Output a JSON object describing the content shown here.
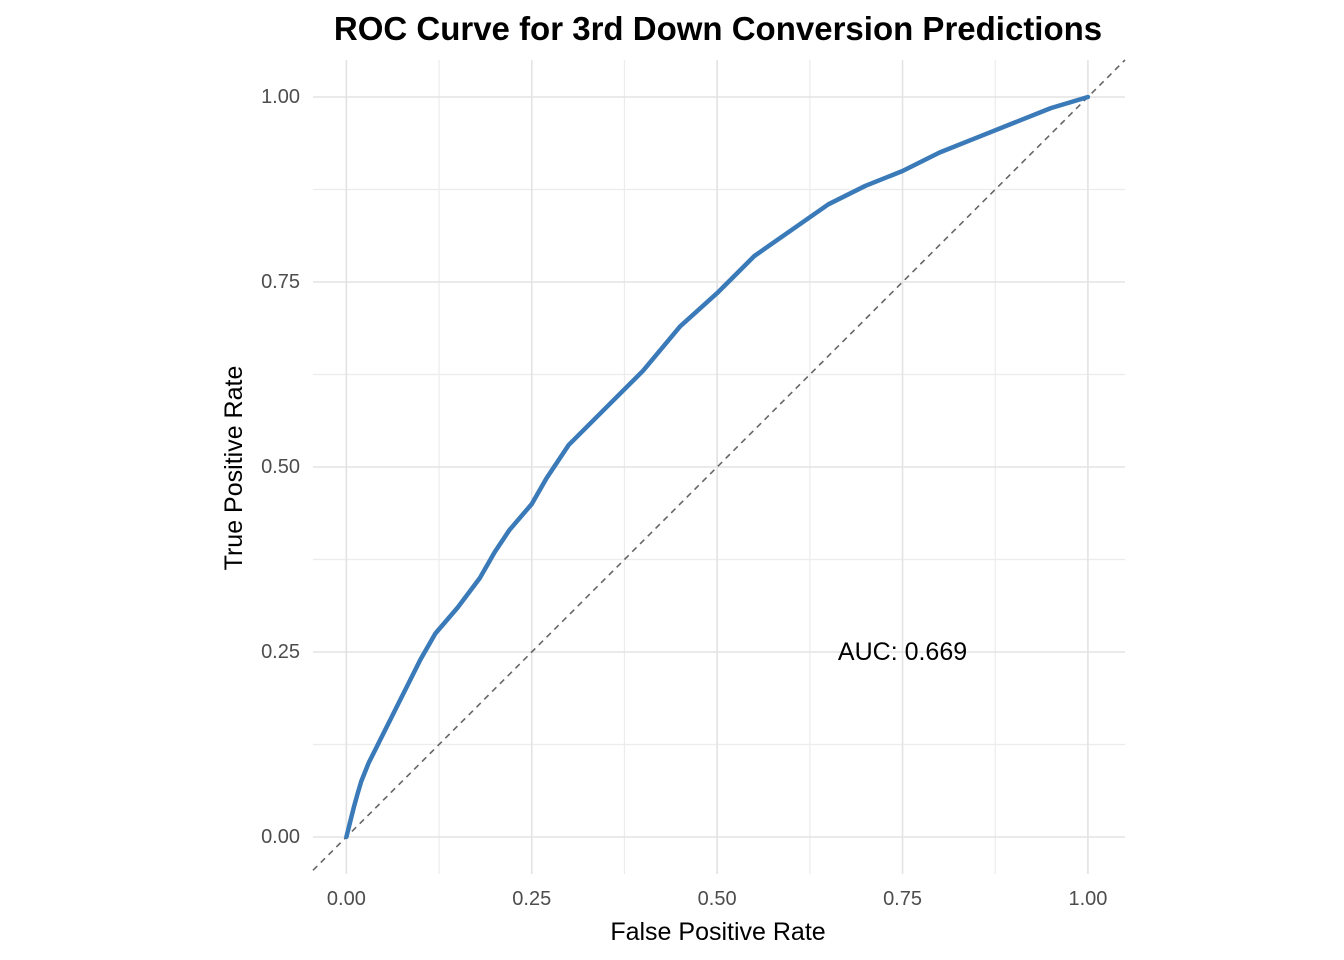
{
  "chart_data": {
    "type": "line",
    "title": "ROC Curve for 3rd Down Conversion Predictions",
    "xlabel": "False Positive Rate",
    "ylabel": "True Positive Rate",
    "xlim": [
      -0.045,
      1.05
    ],
    "ylim": [
      -0.05,
      1.05
    ],
    "x_ticks": [
      0.0,
      0.25,
      0.5,
      0.75,
      1.0
    ],
    "x_tick_labels": [
      "0.00",
      "0.25",
      "0.50",
      "0.75",
      "1.00"
    ],
    "y_ticks": [
      0.0,
      0.25,
      0.5,
      0.75,
      1.0
    ],
    "y_tick_labels": [
      "0.00",
      "0.25",
      "0.50",
      "0.75",
      "1.00"
    ],
    "grid": true,
    "legend": "none",
    "annotation": {
      "text": "AUC: 0.669",
      "x": 0.75,
      "y": 0.25
    },
    "reference_line": {
      "style": "dashed",
      "from": [
        0,
        0
      ],
      "to": [
        1,
        1
      ],
      "color": "#666666"
    },
    "series": [
      {
        "color": "#3a7ab8",
        "points": [
          [
            0.0,
            0.0
          ],
          [
            0.005,
            0.02
          ],
          [
            0.01,
            0.04
          ],
          [
            0.015,
            0.058
          ],
          [
            0.02,
            0.075
          ],
          [
            0.03,
            0.1
          ],
          [
            0.04,
            0.12
          ],
          [
            0.05,
            0.14
          ],
          [
            0.06,
            0.16
          ],
          [
            0.07,
            0.18
          ],
          [
            0.08,
            0.2
          ],
          [
            0.1,
            0.24
          ],
          [
            0.12,
            0.275
          ],
          [
            0.15,
            0.31
          ],
          [
            0.18,
            0.35
          ],
          [
            0.2,
            0.385
          ],
          [
            0.22,
            0.415
          ],
          [
            0.25,
            0.45
          ],
          [
            0.27,
            0.485
          ],
          [
            0.3,
            0.53
          ],
          [
            0.35,
            0.58
          ],
          [
            0.4,
            0.63
          ],
          [
            0.45,
            0.69
          ],
          [
            0.5,
            0.735
          ],
          [
            0.55,
            0.785
          ],
          [
            0.6,
            0.82
          ],
          [
            0.65,
            0.855
          ],
          [
            0.7,
            0.88
          ],
          [
            0.75,
            0.9
          ],
          [
            0.8,
            0.925
          ],
          [
            0.85,
            0.945
          ],
          [
            0.9,
            0.965
          ],
          [
            0.95,
            0.985
          ],
          [
            1.0,
            1.0
          ]
        ]
      }
    ]
  }
}
